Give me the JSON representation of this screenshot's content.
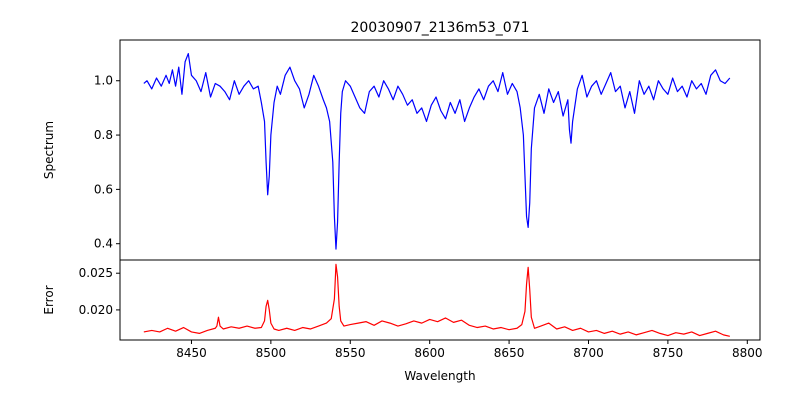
{
  "chart_data": [
    {
      "type": "line",
      "title": "20030907_2136m53_071",
      "xlabel": "",
      "ylabel": "Spectrum",
      "xlim": [
        8405,
        8808
      ],
      "ylim": [
        0.34,
        1.15
      ],
      "x_ticks": [],
      "y_ticks": [
        0.4,
        0.6,
        0.8,
        1.0
      ],
      "y_tick_labels": [
        "0.4",
        "0.6",
        "0.8",
        "1.0"
      ],
      "grid": false,
      "series": [
        {
          "color": "#0000ff",
          "x": [
            8420,
            8422,
            8425,
            8428,
            8431,
            8434,
            8436,
            8438,
            8440,
            8442,
            8444,
            8446,
            8448,
            8450,
            8453,
            8456,
            8459,
            8462,
            8465,
            8468,
            8471,
            8474,
            8477,
            8480,
            8483,
            8486,
            8489,
            8492,
            8494,
            8496,
            8497,
            8498,
            8499,
            8500,
            8502,
            8504,
            8506,
            8509,
            8512,
            8515,
            8518,
            8521,
            8524,
            8527,
            8530,
            8533,
            8535,
            8537,
            8539,
            8540,
            8541,
            8542,
            8543,
            8544,
            8545,
            8547,
            8550,
            8553,
            8556,
            8559,
            8562,
            8565,
            8568,
            8571,
            8574,
            8577,
            8580,
            8583,
            8586,
            8589,
            8592,
            8595,
            8598,
            8601,
            8604,
            8607,
            8610,
            8613,
            8616,
            8619,
            8622,
            8625,
            8628,
            8631,
            8634,
            8637,
            8640,
            8643,
            8646,
            8649,
            8652,
            8655,
            8657,
            8659,
            8660,
            8661,
            8662,
            8663,
            8664,
            8666,
            8669,
            8672,
            8675,
            8678,
            8681,
            8684,
            8687,
            8688,
            8689,
            8690,
            8693,
            8696,
            8699,
            8702,
            8705,
            8708,
            8711,
            8714,
            8717,
            8720,
            8723,
            8726,
            8729,
            8732,
            8735,
            8738,
            8741,
            8744,
            8747,
            8750,
            8753,
            8756,
            8759,
            8762,
            8765,
            8768,
            8771,
            8774,
            8777,
            8780,
            8783,
            8786,
            8789
          ],
          "y": [
            0.99,
            1.0,
            0.97,
            1.01,
            0.98,
            1.02,
            0.99,
            1.04,
            0.98,
            1.05,
            0.95,
            1.07,
            1.1,
            1.02,
            1.0,
            0.96,
            1.03,
            0.94,
            0.99,
            0.98,
            0.96,
            0.93,
            1.0,
            0.95,
            0.98,
            1.0,
            0.97,
            0.98,
            0.92,
            0.85,
            0.7,
            0.58,
            0.65,
            0.8,
            0.92,
            0.98,
            0.95,
            1.02,
            1.05,
            1.0,
            0.97,
            0.9,
            0.95,
            1.02,
            0.98,
            0.93,
            0.9,
            0.85,
            0.7,
            0.5,
            0.38,
            0.48,
            0.7,
            0.88,
            0.96,
            1.0,
            0.98,
            0.94,
            0.9,
            0.88,
            0.96,
            0.98,
            0.94,
            1.0,
            0.97,
            0.93,
            0.98,
            0.95,
            0.91,
            0.93,
            0.88,
            0.9,
            0.85,
            0.91,
            0.94,
            0.89,
            0.86,
            0.92,
            0.88,
            0.93,
            0.85,
            0.9,
            0.94,
            0.97,
            0.93,
            0.98,
            1.0,
            0.96,
            1.03,
            0.95,
            0.99,
            0.96,
            0.9,
            0.8,
            0.65,
            0.5,
            0.46,
            0.55,
            0.75,
            0.9,
            0.95,
            0.88,
            0.97,
            0.92,
            0.96,
            0.87,
            0.93,
            0.82,
            0.77,
            0.85,
            0.97,
            1.02,
            0.94,
            0.98,
            1.0,
            0.95,
            0.99,
            1.03,
            0.96,
            0.98,
            0.9,
            0.96,
            0.88,
            1.0,
            0.95,
            0.98,
            0.93,
            1.0,
            0.97,
            0.95,
            1.01,
            0.96,
            0.98,
            0.94,
            1.0,
            0.97,
            0.99,
            0.95,
            1.02,
            1.04,
            1.0,
            0.99,
            1.01
          ]
        }
      ]
    },
    {
      "type": "line",
      "title": "",
      "xlabel": "Wavelength",
      "ylabel": "Error",
      "xlim": [
        8405,
        8808
      ],
      "ylim": [
        0.0159,
        0.0268
      ],
      "x_ticks": [
        8450,
        8500,
        8550,
        8600,
        8650,
        8700,
        8750,
        8800
      ],
      "x_tick_labels": [
        "8450",
        "8500",
        "8550",
        "8600",
        "8650",
        "8700",
        "8750",
        "8800"
      ],
      "y_ticks": [
        0.02,
        0.025
      ],
      "y_tick_labels": [
        "0.020",
        "0.025"
      ],
      "grid": false,
      "series": [
        {
          "color": "#ff0000",
          "x": [
            8420,
            8425,
            8430,
            8435,
            8440,
            8445,
            8450,
            8455,
            8460,
            8465,
            8466,
            8467,
            8468,
            8470,
            8475,
            8480,
            8485,
            8490,
            8494,
            8496,
            8497,
            8498,
            8499,
            8500,
            8502,
            8505,
            8510,
            8515,
            8520,
            8525,
            8530,
            8535,
            8538,
            8540,
            8541,
            8542,
            8543,
            8544,
            8546,
            8550,
            8555,
            8560,
            8565,
            8570,
            8575,
            8580,
            8585,
            8590,
            8595,
            8600,
            8605,
            8610,
            8615,
            8620,
            8625,
            8630,
            8635,
            8640,
            8645,
            8650,
            8655,
            8658,
            8660,
            8661,
            8662,
            8663,
            8664,
            8666,
            8670,
            8675,
            8680,
            8685,
            8690,
            8695,
            8700,
            8705,
            8710,
            8715,
            8720,
            8725,
            8730,
            8735,
            8740,
            8745,
            8750,
            8755,
            8760,
            8765,
            8770,
            8775,
            8780,
            8785,
            8789
          ],
          "y": [
            0.017,
            0.0172,
            0.017,
            0.0175,
            0.0171,
            0.0176,
            0.017,
            0.0168,
            0.0172,
            0.0175,
            0.0178,
            0.019,
            0.0178,
            0.0174,
            0.0177,
            0.0175,
            0.0178,
            0.0175,
            0.0176,
            0.0185,
            0.0205,
            0.0213,
            0.02,
            0.0182,
            0.0174,
            0.0172,
            0.0175,
            0.0172,
            0.0176,
            0.0174,
            0.0178,
            0.0182,
            0.0188,
            0.0215,
            0.0262,
            0.0245,
            0.0205,
            0.0185,
            0.0178,
            0.018,
            0.0182,
            0.0184,
            0.0179,
            0.0185,
            0.0182,
            0.0178,
            0.0181,
            0.0185,
            0.0182,
            0.0187,
            0.0184,
            0.0189,
            0.0183,
            0.0186,
            0.0179,
            0.0176,
            0.0178,
            0.0174,
            0.0176,
            0.0173,
            0.0175,
            0.018,
            0.0198,
            0.0235,
            0.0258,
            0.0228,
            0.019,
            0.0175,
            0.0178,
            0.0182,
            0.0174,
            0.0177,
            0.0172,
            0.0175,
            0.017,
            0.0172,
            0.0168,
            0.0171,
            0.0167,
            0.017,
            0.0166,
            0.0169,
            0.0172,
            0.0168,
            0.0165,
            0.0169,
            0.0167,
            0.017,
            0.0165,
            0.0168,
            0.0171,
            0.0166,
            0.0164
          ]
        }
      ]
    }
  ]
}
